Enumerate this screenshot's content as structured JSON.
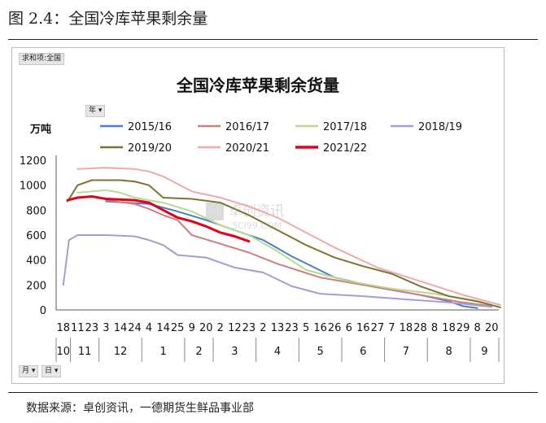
{
  "figure_caption": "图 2.4：全国冷库苹果剩余量",
  "source_note": "数据来源：卓创资讯，一德期货生鲜品事业部",
  "pivot_buttons": {
    "value_field": "求和项:全国",
    "year_filter": "年 ▾",
    "month_filter": "月 ▾",
    "day_filter": "日 ▾"
  },
  "watermark": {
    "brand": "卓创资讯",
    "site": "SCI99.COM"
  },
  "chart_data": {
    "type": "line",
    "title": "全国冷库苹果剩余货量",
    "ylabel": "万吨",
    "ylim": [
      0,
      1200
    ],
    "yticks": [
      0,
      200,
      400,
      600,
      800,
      1000,
      1200
    ],
    "legend_placement": "top",
    "x_day_labels": [
      "18",
      "11",
      "23",
      "3",
      "14",
      "24",
      "4",
      "14",
      "25",
      "9",
      "20",
      "2",
      "12",
      "23",
      "2",
      "13",
      "23",
      "5",
      "16",
      "26",
      "6",
      "16",
      "27",
      "7",
      "18",
      "28",
      "8",
      "18",
      "29",
      "8",
      "20"
    ],
    "x_month_labels": [
      "10",
      "11",
      "12",
      "1",
      "2",
      "3",
      "4",
      "5",
      "6",
      "7",
      "8",
      "9"
    ],
    "x_month_bounds": [
      0,
      1,
      3,
      6,
      9,
      11,
      14,
      17,
      20,
      23,
      26,
      29,
      31
    ],
    "series": [
      {
        "name": "2015/16",
        "color": "#4a7ec8",
        "width": 2,
        "points": [
          [
            3,
            870
          ],
          [
            6,
            850
          ],
          [
            8,
            790
          ],
          [
            10,
            720
          ],
          [
            12,
            640
          ],
          [
            14,
            560
          ],
          [
            16,
            430
          ],
          [
            19,
            260
          ],
          [
            22,
            180
          ],
          [
            25,
            120
          ],
          [
            27,
            70
          ],
          [
            28,
            30
          ],
          [
            29,
            15
          ]
        ]
      },
      {
        "name": "2016/17",
        "color": "#cd7f7a",
        "width": 2,
        "points": [
          [
            3,
            880
          ],
          [
            5,
            850
          ],
          [
            6,
            810
          ],
          [
            7,
            760
          ],
          [
            8,
            720
          ],
          [
            9,
            600
          ],
          [
            11,
            530
          ],
          [
            13,
            460
          ],
          [
            15,
            370
          ],
          [
            18,
            260
          ],
          [
            21,
            200
          ],
          [
            24,
            140
          ],
          [
            26,
            100
          ],
          [
            28,
            60
          ],
          [
            30,
            30
          ]
        ]
      },
      {
        "name": "2017/18",
        "color": "#b9d98e",
        "width": 2,
        "points": [
          [
            1,
            940
          ],
          [
            3,
            960
          ],
          [
            4,
            940
          ],
          [
            5,
            900
          ],
          [
            7,
            860
          ],
          [
            9,
            790
          ],
          [
            11,
            680
          ],
          [
            13,
            600
          ],
          [
            15,
            470
          ],
          [
            17,
            320
          ],
          [
            20,
            230
          ],
          [
            23,
            170
          ],
          [
            26,
            130
          ],
          [
            28,
            90
          ],
          [
            30,
            40
          ]
        ]
      },
      {
        "name": "2018/19",
        "color": "#a99ad3",
        "width": 2,
        "points": [
          [
            0,
            200
          ],
          [
            0.4,
            560
          ],
          [
            1,
            600
          ],
          [
            3,
            600
          ],
          [
            5,
            590
          ],
          [
            6,
            560
          ],
          [
            7,
            520
          ],
          [
            8,
            440
          ],
          [
            10,
            420
          ],
          [
            12,
            340
          ],
          [
            14,
            300
          ],
          [
            16,
            190
          ],
          [
            18,
            130
          ],
          [
            21,
            110
          ],
          [
            24,
            85
          ],
          [
            27,
            60
          ],
          [
            30,
            25
          ]
        ]
      },
      {
        "name": "2019/20",
        "color": "#7b7430",
        "width": 2,
        "points": [
          [
            0.3,
            870
          ],
          [
            1,
            1000
          ],
          [
            2,
            1040
          ],
          [
            4,
            1040
          ],
          [
            5,
            1030
          ],
          [
            6,
            1000
          ],
          [
            7,
            900
          ],
          [
            9,
            890
          ],
          [
            11,
            860
          ],
          [
            13,
            760
          ],
          [
            15,
            640
          ],
          [
            17,
            520
          ],
          [
            19,
            420
          ],
          [
            21,
            350
          ],
          [
            23,
            290
          ],
          [
            25,
            190
          ],
          [
            27,
            110
          ],
          [
            29,
            70
          ],
          [
            30.6,
            20
          ]
        ]
      },
      {
        "name": "2020/21",
        "color": "#f0a9a9",
        "width": 2,
        "points": [
          [
            1,
            1130
          ],
          [
            3,
            1140
          ],
          [
            5,
            1130
          ],
          [
            6,
            1110
          ],
          [
            7,
            1070
          ],
          [
            9,
            950
          ],
          [
            11,
            900
          ],
          [
            13,
            830
          ],
          [
            15,
            740
          ],
          [
            17,
            620
          ],
          [
            19,
            500
          ],
          [
            22,
            340
          ],
          [
            25,
            230
          ],
          [
            28,
            120
          ],
          [
            30.6,
            40
          ]
        ]
      },
      {
        "name": "2021/22",
        "color": "#e3001b",
        "width": 3,
        "points": [
          [
            0.3,
            880
          ],
          [
            1,
            900
          ],
          [
            2,
            910
          ],
          [
            3,
            890
          ],
          [
            5,
            880
          ],
          [
            6,
            860
          ],
          [
            7,
            800
          ],
          [
            8,
            740
          ],
          [
            9,
            710
          ],
          [
            10,
            670
          ],
          [
            11,
            620
          ],
          [
            12,
            590
          ],
          [
            13,
            550
          ]
        ]
      }
    ]
  }
}
